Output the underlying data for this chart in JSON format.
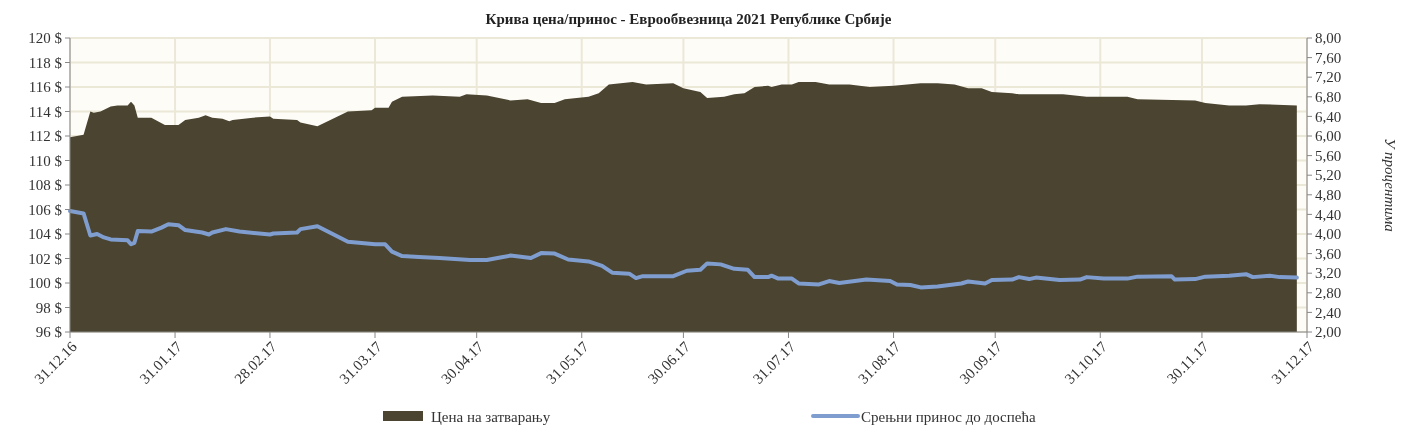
{
  "chart_data": {
    "type": "area",
    "title": "Крива цена/принос - Еврообвезница 2021 Републике Србије",
    "y2label": "У процентима",
    "xlim": [
      "2016-12-31",
      "2017-12-31"
    ],
    "xticks": [
      {
        "value": "2016-12-31",
        "label": "31.12.16"
      },
      {
        "value": "2017-01-31",
        "label": "31.01.17"
      },
      {
        "value": "2017-02-28",
        "label": "28.02.17"
      },
      {
        "value": "2017-03-31",
        "label": "31.03.17"
      },
      {
        "value": "2017-04-30",
        "label": "30.04.17"
      },
      {
        "value": "2017-05-31",
        "label": "31.05.17"
      },
      {
        "value": "2017-06-30",
        "label": "30.06.17"
      },
      {
        "value": "2017-07-31",
        "label": "31.07.17"
      },
      {
        "value": "2017-08-31",
        "label": "31.08.17"
      },
      {
        "value": "2017-09-30",
        "label": "30.09.17"
      },
      {
        "value": "2017-10-31",
        "label": "31.10.17"
      },
      {
        "value": "2017-11-30",
        "label": "30.11.17"
      },
      {
        "value": "2017-12-31",
        "label": "31.12.17"
      }
    ],
    "ylim": [
      96,
      120
    ],
    "yticks": [
      {
        "value": 96,
        "label": "96 $"
      },
      {
        "value": 98,
        "label": "98 $"
      },
      {
        "value": 100,
        "label": "100 $"
      },
      {
        "value": 102,
        "label": "102 $"
      },
      {
        "value": 104,
        "label": "104 $"
      },
      {
        "value": 106,
        "label": "106 $"
      },
      {
        "value": 108,
        "label": "108 $"
      },
      {
        "value": 110,
        "label": "110 $"
      },
      {
        "value": 112,
        "label": "112 $"
      },
      {
        "value": 114,
        "label": "114 $"
      },
      {
        "value": 116,
        "label": "116 $"
      },
      {
        "value": 118,
        "label": "118 $"
      },
      {
        "value": 120,
        "label": "120 $"
      }
    ],
    "y2lim": [
      2,
      8
    ],
    "y2ticks": [
      {
        "value": 2,
        "label": "2,00"
      },
      {
        "value": 2.4,
        "label": "2,40"
      },
      {
        "value": 2.8,
        "label": "2,80"
      },
      {
        "value": 3.2,
        "label": "3,20"
      },
      {
        "value": 3.6,
        "label": "3,60"
      },
      {
        "value": 4,
        "label": "4,00"
      },
      {
        "value": 4.4,
        "label": "4,40"
      },
      {
        "value": 4.8,
        "label": "4,80"
      },
      {
        "value": 5.2,
        "label": "5,20"
      },
      {
        "value": 5.6,
        "label": "5,60"
      },
      {
        "value": 6,
        "label": "6,00"
      },
      {
        "value": 6.4,
        "label": "6,40"
      },
      {
        "value": 6.8,
        "label": "6,80"
      },
      {
        "value": 7.2,
        "label": "7,20"
      },
      {
        "value": 7.6,
        "label": "7,60"
      },
      {
        "value": 8,
        "label": "8,00"
      }
    ],
    "grid": true,
    "legend": "bottom",
    "line_style": "solid",
    "marker": "none",
    "series": [
      {
        "name": "Цена на затварању",
        "color": "#4a4430",
        "x": [
          "2016-12-31",
          "2017-01-04",
          "2017-01-06",
          "2017-01-07",
          "2017-01-09",
          "2017-01-12",
          "2017-01-14",
          "2017-01-17",
          "2017-01-18",
          "2017-01-19",
          "2017-01-20",
          "2017-01-24",
          "2017-01-28",
          "2017-02-01",
          "2017-02-03",
          "2017-02-07",
          "2017-02-09",
          "2017-02-11",
          "2017-02-14",
          "2017-02-16",
          "2017-02-17",
          "2017-02-23",
          "2017-02-28",
          "2017-03-01",
          "2017-03-08",
          "2017-03-09",
          "2017-03-14",
          "2017-03-23",
          "2017-03-30",
          "2017-03-31",
          "2017-04-04",
          "2017-04-05",
          "2017-04-08",
          "2017-04-17",
          "2017-04-25",
          "2017-04-27",
          "2017-05-03",
          "2017-05-10",
          "2017-05-15",
          "2017-05-19",
          "2017-05-23",
          "2017-05-26",
          "2017-06-02",
          "2017-06-05",
          "2017-06-08",
          "2017-06-15",
          "2017-06-19",
          "2017-06-27",
          "2017-06-30",
          "2017-07-05",
          "2017-07-07",
          "2017-07-12",
          "2017-07-15",
          "2017-07-18",
          "2017-07-21",
          "2017-07-25",
          "2017-07-26",
          "2017-07-29",
          "2017-08-01",
          "2017-08-03",
          "2017-08-08",
          "2017-08-12",
          "2017-08-18",
          "2017-08-24",
          "2017-08-31",
          "2017-09-08",
          "2017-09-13",
          "2017-09-18",
          "2017-09-22",
          "2017-09-26",
          "2017-09-29",
          "2017-10-05",
          "2017-10-07",
          "2017-10-10",
          "2017-10-20",
          "2017-10-27",
          "2017-11-08",
          "2017-11-11",
          "2017-11-28",
          "2017-12-01",
          "2017-12-08",
          "2017-12-13",
          "2017-12-17",
          "2017-12-28"
        ],
        "values": [
          111.9,
          112.1,
          114.0,
          113.9,
          114.0,
          114.4,
          114.5,
          114.5,
          114.8,
          114.5,
          113.5,
          113.5,
          112.9,
          112.9,
          113.3,
          113.5,
          113.7,
          113.5,
          113.4,
          113.2,
          113.3,
          113.5,
          113.6,
          113.4,
          113.3,
          113.1,
          112.8,
          114.0,
          114.1,
          114.3,
          114.3,
          114.8,
          115.2,
          115.3,
          115.2,
          115.4,
          115.3,
          114.9,
          115.0,
          114.7,
          114.7,
          115.0,
          115.2,
          115.5,
          116.2,
          116.4,
          116.2,
          116.3,
          115.9,
          115.6,
          115.1,
          115.2,
          115.4,
          115.5,
          116.0,
          116.1,
          116.0,
          116.2,
          116.2,
          116.4,
          116.4,
          116.2,
          116.2,
          116.0,
          116.1,
          116.3,
          116.3,
          116.2,
          115.9,
          115.9,
          115.6,
          115.5,
          115.4,
          115.4,
          115.4,
          115.2,
          115.2,
          115.0,
          114.9,
          114.7,
          114.5,
          114.5,
          114.6,
          114.5
        ]
      },
      {
        "name": "Срењни принос до доспећа",
        "type": "line",
        "axis": "y2",
        "color": "#7f9dce",
        "x": [
          "2016-12-31",
          "2017-01-04",
          "2017-01-06",
          "2017-01-08",
          "2017-01-10",
          "2017-01-12",
          "2017-01-17",
          "2017-01-18",
          "2017-01-19",
          "2017-01-20",
          "2017-01-24",
          "2017-01-27",
          "2017-01-29",
          "2017-02-01",
          "2017-02-03",
          "2017-02-08",
          "2017-02-10",
          "2017-02-11",
          "2017-02-15",
          "2017-02-19",
          "2017-02-28",
          "2017-03-01",
          "2017-03-08",
          "2017-03-09",
          "2017-03-14",
          "2017-03-23",
          "2017-03-31",
          "2017-04-03",
          "2017-04-05",
          "2017-04-08",
          "2017-04-13",
          "2017-04-19",
          "2017-04-28",
          "2017-05-03",
          "2017-05-10",
          "2017-05-16",
          "2017-05-19",
          "2017-05-23",
          "2017-05-27",
          "2017-06-02",
          "2017-06-06",
          "2017-06-09",
          "2017-06-14",
          "2017-06-16",
          "2017-06-18",
          "2017-06-27",
          "2017-07-01",
          "2017-07-05",
          "2017-07-07",
          "2017-07-11",
          "2017-07-15",
          "2017-07-19",
          "2017-07-21",
          "2017-07-25",
          "2017-07-26",
          "2017-07-28",
          "2017-08-01",
          "2017-08-03",
          "2017-08-09",
          "2017-08-12",
          "2017-08-15",
          "2017-08-23",
          "2017-08-30",
          "2017-09-01",
          "2017-09-05",
          "2017-09-08",
          "2017-09-13",
          "2017-09-20",
          "2017-09-22",
          "2017-09-27",
          "2017-09-29",
          "2017-10-05",
          "2017-10-07",
          "2017-10-10",
          "2017-10-12",
          "2017-10-19",
          "2017-10-25",
          "2017-10-27",
          "2017-11-01",
          "2017-11-08",
          "2017-11-11",
          "2017-11-21",
          "2017-11-22",
          "2017-11-28",
          "2017-12-01",
          "2017-12-08",
          "2017-12-13",
          "2017-12-15",
          "2017-12-20",
          "2017-12-23",
          "2017-12-28"
        ],
        "values": [
          4.47,
          4.42,
          3.97,
          4.0,
          3.93,
          3.89,
          3.87,
          3.79,
          3.82,
          4.06,
          4.05,
          4.13,
          4.2,
          4.18,
          4.08,
          4.03,
          3.99,
          4.03,
          4.1,
          4.05,
          3.99,
          4.01,
          4.03,
          4.1,
          4.16,
          3.84,
          3.79,
          3.79,
          3.64,
          3.55,
          3.53,
          3.51,
          3.47,
          3.47,
          3.56,
          3.51,
          3.61,
          3.6,
          3.48,
          3.44,
          3.35,
          3.21,
          3.19,
          3.1,
          3.14,
          3.14,
          3.25,
          3.27,
          3.4,
          3.38,
          3.29,
          3.27,
          3.12,
          3.12,
          3.15,
          3.09,
          3.09,
          2.99,
          2.97,
          3.04,
          3.0,
          3.07,
          3.04,
          2.97,
          2.96,
          2.91,
          2.93,
          2.99,
          3.03,
          2.99,
          3.06,
          3.07,
          3.12,
          3.08,
          3.11,
          3.06,
          3.07,
          3.12,
          3.09,
          3.09,
          3.13,
          3.14,
          3.07,
          3.08,
          3.13,
          3.15,
          3.18,
          3.12,
          3.15,
          3.12,
          3.11
        ]
      }
    ]
  }
}
